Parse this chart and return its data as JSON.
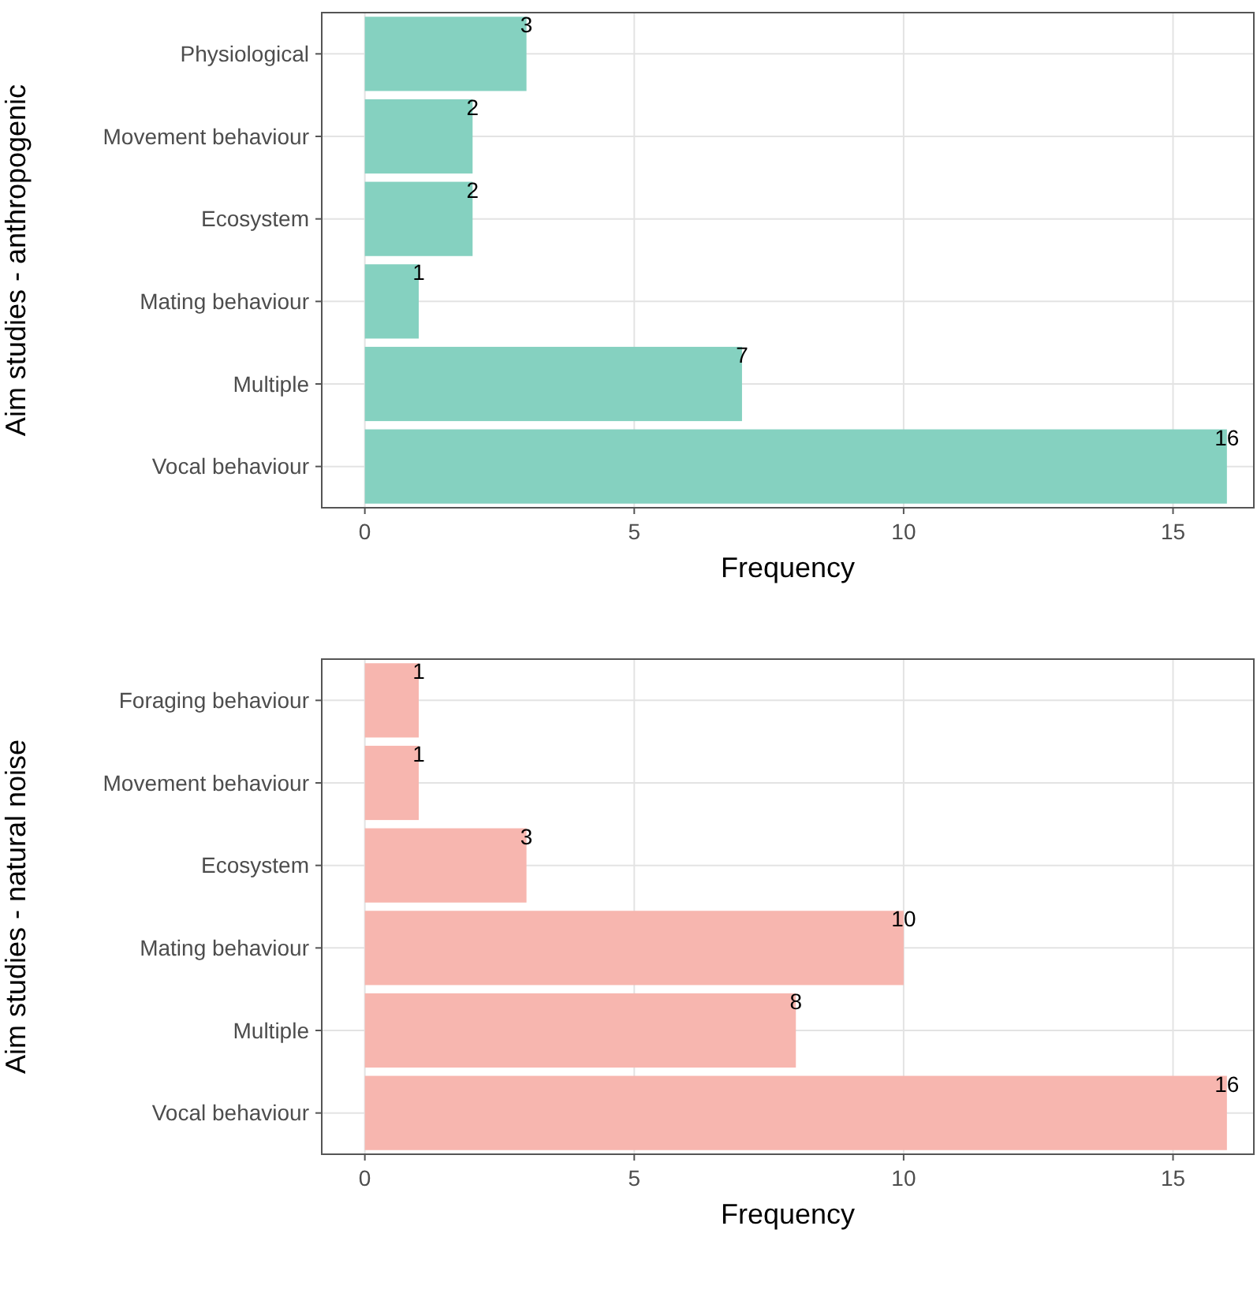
{
  "chart_data": [
    {
      "type": "bar",
      "orientation": "horizontal",
      "ylabel": "Aim studies - anthropogenic",
      "xlabel": "Frequency",
      "categories": [
        "Physiological",
        "Movement behaviour",
        "Ecosystem",
        "Mating behaviour",
        "Multiple",
        "Vocal behaviour"
      ],
      "values": [
        3,
        2,
        2,
        1,
        7,
        16
      ],
      "color": "#85d1c0",
      "xlim": [
        -0.8,
        16.5
      ],
      "xticks": [
        0,
        5,
        10,
        15
      ],
      "grid": true,
      "data_labels": true
    },
    {
      "type": "bar",
      "orientation": "horizontal",
      "ylabel": "Aim studies - natural noise",
      "xlabel": "Frequency",
      "categories": [
        "Foraging behaviour",
        "Movement behaviour",
        "Ecosystem",
        "Mating behaviour",
        "Multiple",
        "Vocal behaviour"
      ],
      "values": [
        1,
        1,
        3,
        10,
        8,
        16
      ],
      "color": "#f7b6af",
      "xlim": [
        -0.8,
        16.5
      ],
      "xticks": [
        0,
        5,
        10,
        15
      ],
      "grid": true,
      "data_labels": true
    }
  ]
}
